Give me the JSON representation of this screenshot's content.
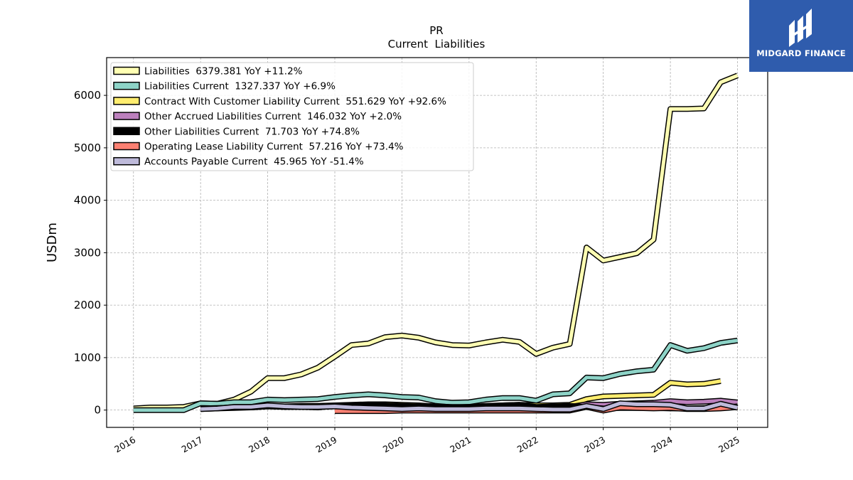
{
  "chart_data": {
    "type": "area",
    "title": "PR",
    "subtitle": "Current  Liabilities",
    "ylabel": "USDm",
    "xlabel": "",
    "ylim": [
      -330,
      6720
    ],
    "xlim": [
      2015.6,
      2025.45
    ],
    "yticks": [
      0,
      1000,
      2000,
      3000,
      4000,
      5000,
      6000
    ],
    "ytick_labels": [
      "0",
      "1000",
      "2000",
      "3000",
      "4000",
      "5000",
      "6000"
    ],
    "xticks": [
      2016,
      2017,
      2018,
      2019,
      2020,
      2021,
      2022,
      2023,
      2024,
      2025
    ],
    "xtick_labels": [
      "2016",
      "2017",
      "2018",
      "2019",
      "2020",
      "2021",
      "2022",
      "2023",
      "2024",
      "2025"
    ],
    "grid": true,
    "legend_position": "top-left",
    "series": [
      {
        "name": "Liabilities",
        "legend": "Liabilities  6379.381 YoY +11.2%",
        "color": "#ffffb3",
        "x": [
          2016.0,
          2016.25,
          2016.5,
          2016.75,
          2017.0,
          2017.25,
          2017.5,
          2017.75,
          2018.0,
          2018.25,
          2018.5,
          2018.75,
          2019.0,
          2019.25,
          2019.5,
          2019.75,
          2020.0,
          2020.25,
          2020.5,
          2020.75,
          2021.0,
          2021.25,
          2021.5,
          2021.75,
          2022.0,
          2022.25,
          2022.5,
          2022.75,
          2023.0,
          2023.25,
          2023.5,
          2023.75,
          2024.0,
          2024.25,
          2024.5,
          2024.75,
          2025.0
        ],
        "values": [
          30,
          50,
          50,
          60,
          130,
          120,
          200,
          350,
          610,
          610,
          680,
          810,
          1020,
          1240,
          1270,
          1390,
          1420,
          1380,
          1290,
          1240,
          1230,
          1290,
          1340,
          1300,
          1070,
          1190,
          1260,
          3100,
          2850,
          2920,
          2990,
          3250,
          5740,
          5740,
          5750,
          6250,
          6379
        ]
      },
      {
        "name": "Liabilities Current",
        "legend": "Liabilities Current  1327.337 YoY +6.9%",
        "color": "#8dd3c7",
        "x": [
          2016.0,
          2016.25,
          2016.5,
          2016.75,
          2017.0,
          2017.25,
          2017.5,
          2017.75,
          2018.0,
          2018.25,
          2018.5,
          2018.75,
          2019.0,
          2019.25,
          2019.5,
          2019.75,
          2020.0,
          2020.25,
          2020.5,
          2020.75,
          2021.0,
          2021.25,
          2021.5,
          2021.75,
          2022.0,
          2022.25,
          2022.5,
          2022.75,
          2023.0,
          2023.25,
          2023.5,
          2023.75,
          2024.0,
          2024.25,
          2024.5,
          2024.75,
          2025.0
        ],
        "values": [
          0,
          0,
          0,
          0,
          130,
          120,
          150,
          150,
          200,
          190,
          200,
          210,
          250,
          280,
          300,
          280,
          250,
          240,
          170,
          140,
          150,
          200,
          230,
          230,
          180,
          300,
          320,
          620,
          610,
          690,
          740,
          770,
          1240,
          1130,
          1180,
          1280,
          1327
        ]
      },
      {
        "name": "Contract With Customer Liability Current",
        "legend": "Contract With Customer Liability Current  551.629 YoY +92.6%",
        "color": "#ffed6f",
        "x": [
          2018.0,
          2018.25,
          2018.5,
          2018.75,
          2019.0,
          2019.25,
          2019.5,
          2019.75,
          2020.0,
          2020.25,
          2020.5,
          2020.75,
          2021.0,
          2021.25,
          2021.5,
          2021.75,
          2022.0,
          2022.25,
          2022.5,
          2022.75,
          2023.0,
          2023.25,
          2023.5,
          2023.75,
          2024.0,
          2024.25,
          2024.5,
          2024.75
        ],
        "values": [
          80,
          70,
          80,
          80,
          90,
          100,
          110,
          110,
          100,
          90,
          70,
          60,
          60,
          80,
          90,
          100,
          90,
          90,
          100,
          210,
          260,
          270,
          280,
          290,
          520,
          490,
          500,
          552
        ]
      },
      {
        "name": "Other Accrued Liabilities Current",
        "legend": "Other Accrued Liabilities Current  146.032 YoY +2.0%",
        "color": "#bc80bd",
        "x": [
          2017.0,
          2017.25,
          2017.5,
          2017.75,
          2018.0,
          2018.25,
          2018.5,
          2018.75,
          2019.0,
          2019.25,
          2019.5,
          2019.75,
          2020.0,
          2020.25,
          2020.5,
          2020.75,
          2021.0,
          2021.25,
          2021.5,
          2021.75,
          2022.0,
          2022.25,
          2022.5,
          2022.75,
          2023.0,
          2023.25,
          2023.5,
          2023.75,
          2024.0,
          2024.25,
          2024.5,
          2024.75,
          2025.0
        ],
        "values": [
          30,
          40,
          50,
          50,
          70,
          60,
          60,
          60,
          70,
          80,
          90,
          80,
          70,
          60,
          40,
          40,
          40,
          50,
          60,
          60,
          40,
          50,
          60,
          110,
          100,
          120,
          130,
          140,
          170,
          150,
          160,
          180,
          146
        ]
      },
      {
        "name": "Other Liabilities Current",
        "legend": "Other Liabilities Current  71.703 YoY +74.8%",
        "color": "#000000",
        "x": [
          2017.0,
          2017.25,
          2017.5,
          2017.75,
          2018.0,
          2018.25,
          2018.5,
          2018.75,
          2019.0,
          2019.25,
          2019.5,
          2019.75,
          2020.0,
          2020.25,
          2020.5,
          2020.75,
          2021.0,
          2021.25,
          2021.5,
          2021.75,
          2022.0,
          2022.25,
          2022.5,
          2022.75,
          2023.0,
          2023.25,
          2023.5,
          2023.75,
          2024.0,
          2024.25,
          2024.5,
          2024.75,
          2025.0
        ],
        "values": [
          20,
          30,
          40,
          50,
          70,
          60,
          60,
          50,
          80,
          90,
          100,
          90,
          80,
          70,
          60,
          50,
          60,
          70,
          90,
          100,
          60,
          70,
          80,
          60,
          30,
          40,
          40,
          40,
          30,
          30,
          40,
          40,
          72
        ]
      },
      {
        "name": "Operating Lease Liability Current",
        "legend": "Operating Lease Liability Current  57.216 YoY +73.4%",
        "color": "#fb8072",
        "x": [
          2019.0,
          2019.25,
          2019.5,
          2019.75,
          2020.0,
          2020.25,
          2020.5,
          2020.75,
          2021.0,
          2021.25,
          2021.5,
          2021.75,
          2022.0,
          2022.25,
          2022.5,
          2022.75,
          2023.0,
          2023.25,
          2023.5,
          2023.75,
          2024.0,
          2024.25,
          2024.5,
          2024.75,
          2025.0
        ],
        "values": [
          -20,
          -20,
          -20,
          -20,
          -10,
          -10,
          -10,
          -10,
          -10,
          -10,
          -10,
          -10,
          -10,
          -10,
          -10,
          60,
          -10,
          50,
          40,
          30,
          40,
          20,
          20,
          30,
          57
        ]
      },
      {
        "name": "Accounts Payable Current",
        "legend": "Accounts Payable Current  45.965 YoY -51.4%",
        "color": "#bebada",
        "x": [
          2017.0,
          2017.25,
          2017.5,
          2017.75,
          2018.0,
          2018.25,
          2018.5,
          2018.75,
          2019.0,
          2019.25,
          2019.5,
          2019.75,
          2020.0,
          2020.25,
          2020.5,
          2020.75,
          2021.0,
          2021.25,
          2021.5,
          2021.75,
          2022.0,
          2022.25,
          2022.5,
          2022.75,
          2023.0,
          2023.25,
          2023.5,
          2023.75,
          2024.0,
          2024.25,
          2024.5,
          2024.75,
          2025.0
        ],
        "values": [
          20,
          30,
          60,
          60,
          90,
          70,
          60,
          60,
          70,
          50,
          40,
          30,
          20,
          30,
          20,
          20,
          20,
          30,
          30,
          30,
          20,
          10,
          10,
          80,
          20,
          130,
          110,
          110,
          100,
          30,
          30,
          120,
          46
        ]
      }
    ]
  },
  "logo": {
    "text": "MIDGARD FINANCE",
    "color": "#2f5cad"
  }
}
